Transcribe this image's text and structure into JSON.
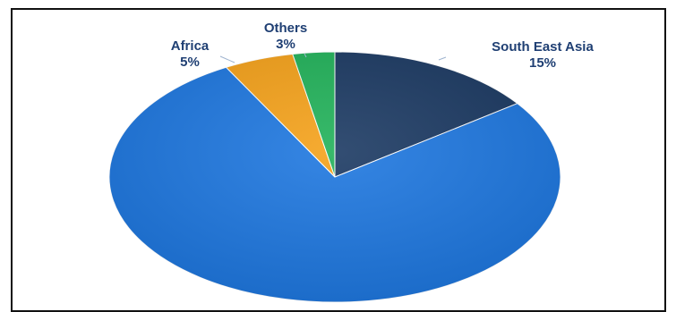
{
  "chart_data": {
    "type": "pie",
    "slices": [
      {
        "name": "South East Asia",
        "value": 15,
        "label": "15%",
        "color": "#1c3a63"
      },
      {
        "name": "",
        "value": 77,
        "label": "",
        "color": "#1f78e0"
      },
      {
        "name": "Africa",
        "value": 5,
        "label": "5%",
        "color": "#f5a21b"
      },
      {
        "name": "Others",
        "value": 3,
        "label": "3%",
        "color": "#22b25a"
      }
    ],
    "start_angle": "12 o'clock",
    "direction": "clockwise",
    "legend": "none",
    "title": ""
  }
}
